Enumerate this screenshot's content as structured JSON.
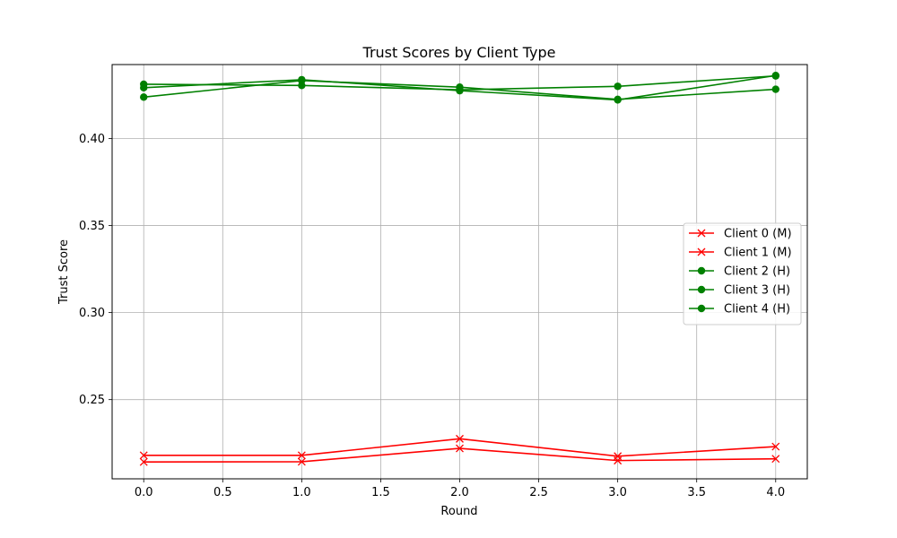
{
  "chart_data": {
    "type": "line",
    "title": "Trust Scores by Client Type",
    "xlabel": "Round",
    "ylabel": "Trust Score",
    "x": [
      0,
      1,
      2,
      3,
      4
    ],
    "xlim": [
      -0.2,
      4.2
    ],
    "ylim": [
      0.2045,
      0.4425
    ],
    "xticks": [
      0.0,
      0.5,
      1.0,
      1.5,
      2.0,
      2.5,
      3.0,
      3.5,
      4.0
    ],
    "xtick_labels": [
      "0.0",
      "0.5",
      "1.0",
      "1.5",
      "2.0",
      "2.5",
      "3.0",
      "3.5",
      "4.0"
    ],
    "yticks": [
      0.25,
      0.3,
      0.35,
      0.4
    ],
    "ytick_labels": [
      "0.25",
      "0.30",
      "0.35",
      "0.40"
    ],
    "grid": true,
    "legend_position": "center-right",
    "series": [
      {
        "name": "Client 0 (M)",
        "color": "#ff0000",
        "marker": "x",
        "values": [
          0.218,
          0.218,
          0.2275,
          0.2175,
          0.223
        ]
      },
      {
        "name": "Client 1 (M)",
        "color": "#ff0000",
        "marker": "x",
        "values": [
          0.2142,
          0.2143,
          0.222,
          0.215,
          0.216
        ]
      },
      {
        "name": "Client 2 (H)",
        "color": "#008000",
        "marker": "o",
        "values": [
          0.4312,
          0.4305,
          0.428,
          0.43,
          0.436
        ]
      },
      {
        "name": "Client 3 (H)",
        "color": "#008000",
        "marker": "o",
        "values": [
          0.4238,
          0.4333,
          0.4295,
          0.4225,
          0.4283
        ]
      },
      {
        "name": "Client 4 (H)",
        "color": "#008000",
        "marker": "o",
        "values": [
          0.4292,
          0.4338,
          0.4275,
          0.4222,
          0.4362
        ]
      }
    ]
  }
}
